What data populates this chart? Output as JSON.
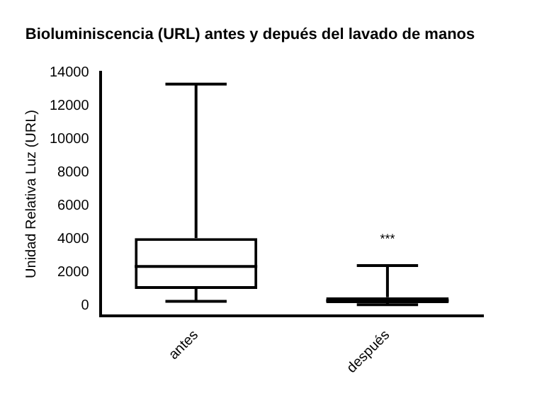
{
  "chart_data": {
    "type": "box",
    "title": "Bioluminiscencia (URL) antes y depués del lavado de manos",
    "ylabel": "Unidad Relativa Luz (URL)",
    "categories": [
      "antes",
      "después"
    ],
    "boxes": [
      {
        "low": 250,
        "q1": 1000,
        "median": 2350,
        "q3": 4050,
        "high": 13300
      },
      {
        "low": 50,
        "q1": 150,
        "median": 300,
        "q3": 500,
        "high": 2400
      }
    ],
    "color": "#000000",
    "ylim": [
      -600,
      14000
    ],
    "yticks": [
      0,
      2000,
      4000,
      6000,
      8000,
      10000,
      12000,
      14000
    ],
    "grid": false,
    "legend": false,
    "annotations": [
      "***"
    ]
  }
}
